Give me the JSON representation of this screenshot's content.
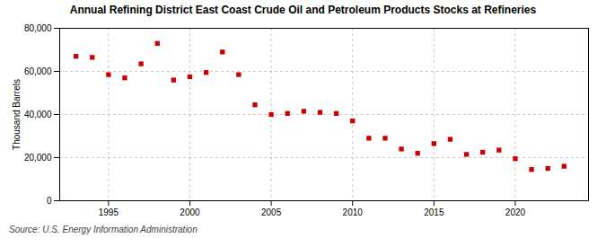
{
  "chart_data": {
    "type": "scatter",
    "title": "Annual Refining District East Coast Crude Oil and Petroleum Products Stocks at Refineries",
    "ylabel": "Thousand Barrels",
    "source": "Source: U.S. Energy Information Administration",
    "x": [
      1993,
      1994,
      1995,
      1996,
      1997,
      1998,
      1999,
      2000,
      2001,
      2002,
      2003,
      2004,
      2005,
      2006,
      2007,
      2008,
      2009,
      2010,
      2011,
      2012,
      2013,
      2014,
      2015,
      2016,
      2017,
      2018,
      2019,
      2020,
      2021,
      2022,
      2023
    ],
    "values": [
      67000,
      66500,
      58500,
      57000,
      63500,
      73000,
      56000,
      57500,
      59500,
      69000,
      58500,
      44500,
      40000,
      40500,
      41500,
      41000,
      40500,
      37000,
      29000,
      29000,
      24000,
      22000,
      26500,
      28500,
      21500,
      22500,
      23500,
      19500,
      14500,
      15000,
      16000
    ],
    "color": "#cc0000",
    "marker": "square",
    "xlim": [
      1992,
      2024.5
    ],
    "ylim": [
      0,
      80000
    ],
    "xticks": [
      1995,
      2000,
      2005,
      2010,
      2015,
      2020
    ],
    "yticks": [
      0,
      {
        "value": 20000,
        "label": "20,000"
      },
      {
        "value": 40000,
        "label": "40,000"
      },
      {
        "value": 60000,
        "label": "60,000"
      },
      {
        "value": 80000,
        "label": "80,000"
      }
    ],
    "grid": true
  }
}
